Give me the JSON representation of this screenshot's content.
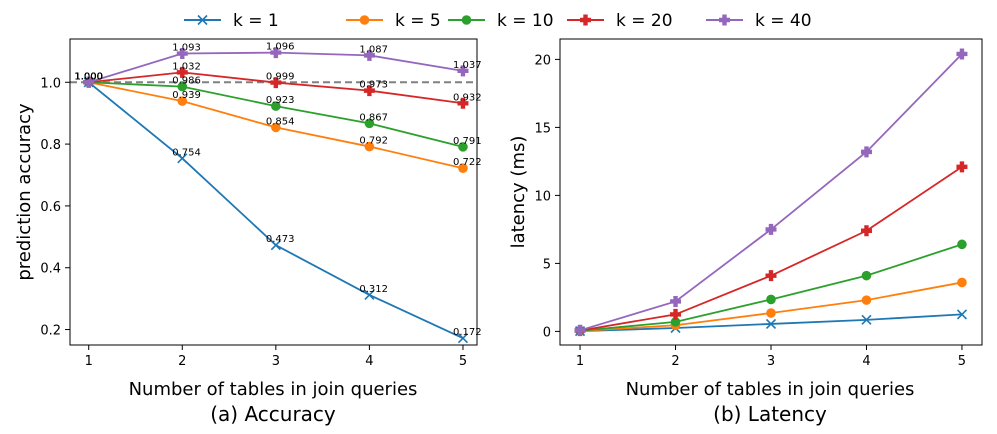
{
  "legend": {
    "items": [
      {
        "label": "k = 1",
        "color": "#1f77b4",
        "marker": "x"
      },
      {
        "label": "k = 5",
        "color": "#ff7f0e",
        "marker": "circle"
      },
      {
        "label": "k = 10",
        "color": "#2ca02c",
        "marker": "circle"
      },
      {
        "label": "k = 20",
        "color": "#d62728",
        "marker": "plus"
      },
      {
        "label": "k = 40",
        "color": "#9467bd",
        "marker": "plus"
      }
    ]
  },
  "chart_data": [
    {
      "type": "line",
      "title": "(a) Accuracy",
      "xlabel": "Number of tables in join queries",
      "ylabel": "prediction accuracy",
      "x": [
        1,
        2,
        3,
        4,
        5
      ],
      "xticks": [
        "1",
        "2",
        "3",
        "4",
        "5"
      ],
      "yticks": [
        "0.2",
        "0.4",
        "0.6",
        "0.8",
        "1.0"
      ],
      "ylim": [
        0.15,
        1.14
      ],
      "reference_line": 1.0,
      "series": [
        {
          "name": "k = 1",
          "values": [
            1.0,
            0.754,
            0.473,
            0.312,
            0.172
          ],
          "labels": [
            "1.000",
            "0.754",
            "0.473",
            "0.312",
            "0.172"
          ]
        },
        {
          "name": "k = 5",
          "values": [
            1.0,
            0.939,
            0.854,
            0.792,
            0.722
          ],
          "labels": [
            "1.000",
            "0.939",
            "0.854",
            "0.792",
            "0.722"
          ]
        },
        {
          "name": "k = 10",
          "values": [
            1.0,
            0.986,
            0.923,
            0.867,
            0.791
          ],
          "labels": [
            "1.000",
            "0.986",
            "0.923",
            "0.867",
            "0.791"
          ]
        },
        {
          "name": "k = 20",
          "values": [
            1.0,
            1.032,
            0.999,
            0.973,
            0.932
          ],
          "labels": [
            "1.000",
            "1.032",
            "0.999",
            "0.973",
            "0.932"
          ]
        },
        {
          "name": "k = 40",
          "values": [
            1.0,
            1.093,
            1.096,
            1.087,
            1.037
          ],
          "labels": [
            "1.000",
            "1.093",
            "1.096",
            "1.087",
            "1.037"
          ]
        }
      ]
    },
    {
      "type": "line",
      "title": "(b) Latency",
      "xlabel": "Number of tables in join queries",
      "ylabel": "latency (ms)",
      "x": [
        1,
        2,
        3,
        4,
        5
      ],
      "xticks": [
        "1",
        "2",
        "3",
        "4",
        "5"
      ],
      "yticks": [
        "0",
        "5",
        "10",
        "15",
        "20"
      ],
      "ylim": [
        -1.0,
        21.5
      ],
      "series": [
        {
          "name": "k = 1",
          "values": [
            0.02,
            0.25,
            0.55,
            0.85,
            1.25
          ]
        },
        {
          "name": "k = 5",
          "values": [
            0.03,
            0.45,
            1.35,
            2.3,
            3.6
          ]
        },
        {
          "name": "k = 10",
          "values": [
            0.05,
            0.7,
            2.35,
            4.1,
            6.4
          ]
        },
        {
          "name": "k = 20",
          "values": [
            0.06,
            1.25,
            4.1,
            7.4,
            12.1
          ]
        },
        {
          "name": "k = 40",
          "values": [
            0.08,
            2.2,
            7.5,
            13.2,
            20.4
          ]
        }
      ]
    }
  ]
}
